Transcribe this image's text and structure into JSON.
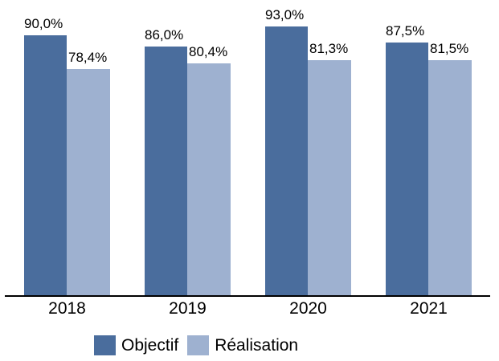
{
  "chart_data": {
    "type": "bar",
    "title": "",
    "categories": [
      "2018",
      "2019",
      "2020",
      "2021"
    ],
    "series": [
      {
        "name": "Objectif",
        "color": "#4A6D9D",
        "values": [
          90.0,
          86.0,
          93.0,
          87.5
        ],
        "labels": [
          "90,0%",
          "86,0%",
          "93,0%",
          "87,5%"
        ]
      },
      {
        "name": "Réalisation",
        "color": "#9EB1D0",
        "values": [
          78.4,
          80.4,
          81.3,
          81.5
        ],
        "labels": [
          "78,4%",
          "80,4%",
          "81,3%",
          "81,5%"
        ]
      }
    ],
    "xlabel": "",
    "ylabel": "",
    "ylim": [
      0,
      100
    ],
    "grid": false,
    "axis_color": "#000000",
    "text_color": "#000000",
    "legend_position": "bottom",
    "value_label_format": "french-decimal-comma-percent"
  },
  "legend": {
    "items": [
      {
        "label": "Objectif",
        "color": "#4A6D9D"
      },
      {
        "label": "Réalisation",
        "color": "#9EB1D0"
      }
    ]
  }
}
